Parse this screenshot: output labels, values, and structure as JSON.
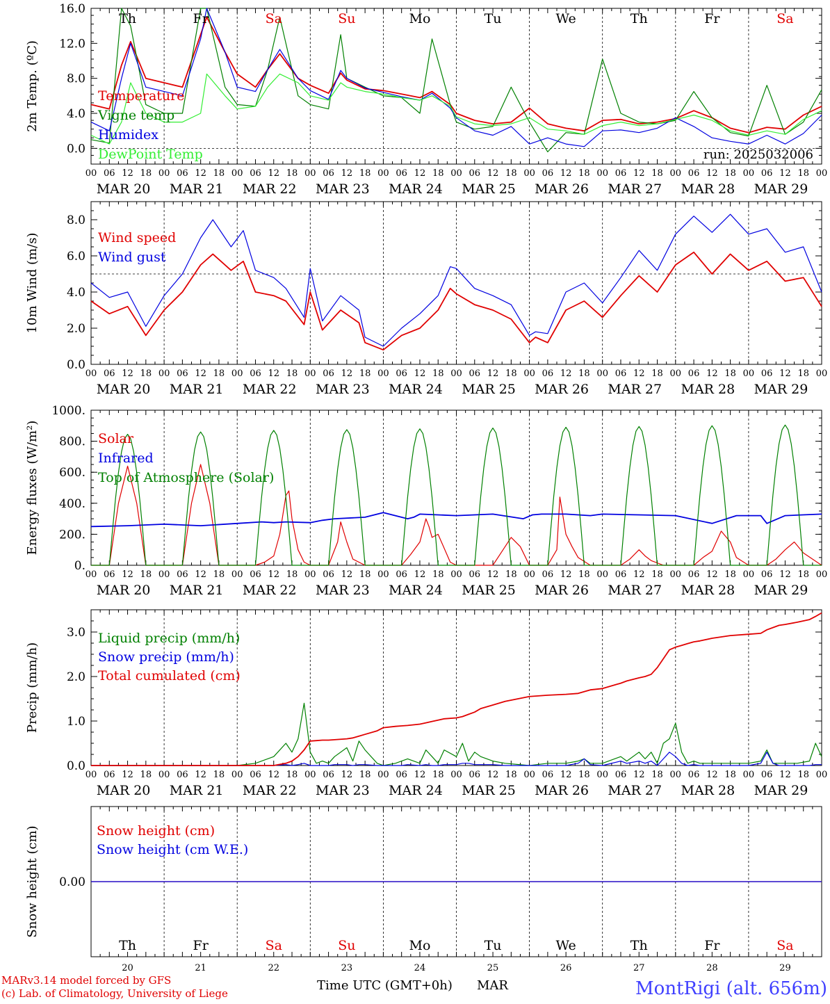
{
  "footer": {
    "model_line": "MARv3.14 model forced by GFS",
    "lab_line": "(c) Lab. of Climatology, University of Liege",
    "time_axis_label": "Time UTC (GMT+0h)",
    "month_label": "MAR",
    "station": "MontRigi (alt. 656m)"
  },
  "days": {
    "weekday_abbr": [
      "Th",
      "Fr",
      "Sa",
      "Su",
      "Mo",
      "Tu",
      "We",
      "Th",
      "Fr",
      "Sa"
    ],
    "weekday_colors": [
      "#000000",
      "#000000",
      "#e00000",
      "#e00000",
      "#000000",
      "#000000",
      "#000000",
      "#000000",
      "#000000",
      "#e00000"
    ],
    "date_labels": [
      "MAR 20",
      "MAR 21",
      "MAR 22",
      "MAR 23",
      "MAR 24",
      "MAR 25",
      "MAR 26",
      "MAR 27",
      "MAR 28",
      "MAR 29"
    ],
    "day_numbers": [
      "20",
      "21",
      "22",
      "23",
      "24",
      "25",
      "26",
      "27",
      "28",
      "29"
    ],
    "hour_ticks": [
      "00",
      "06",
      "12",
      "18"
    ],
    "final_hour": "00"
  },
  "chart_data": [
    {
      "type": "line",
      "id": "temperature",
      "ylabel": "2m Temp. (ºC)",
      "ylim": [
        -1.8,
        16.0
      ],
      "yticks": [
        0,
        4,
        8,
        12,
        16
      ],
      "ytick_labels": [
        "0.0",
        "4.0",
        "8.0",
        "12.0",
        "16.0"
      ],
      "dashed_reference": 0,
      "annotation": "run: 2025032006",
      "x_hours": [
        0,
        6,
        10,
        13,
        18,
        24,
        30,
        36,
        38,
        44,
        48,
        54,
        58,
        62,
        68,
        72,
        78,
        82,
        84,
        90,
        96,
        102,
        108,
        112,
        118,
        120,
        126,
        132,
        138,
        144,
        150,
        156,
        162,
        168,
        174,
        180,
        186,
        192,
        198,
        204,
        210,
        216,
        222,
        228,
        234,
        240
      ],
      "series": [
        {
          "name": "Temperature",
          "color": "#e00000",
          "values": [
            5.0,
            4.5,
            9.5,
            12.2,
            8.0,
            7.5,
            7.0,
            13.0,
            15.0,
            11.0,
            8.5,
            7.0,
            9.0,
            10.8,
            8.0,
            7.2,
            6.3,
            8.6,
            7.8,
            6.8,
            6.6,
            6.2,
            5.8,
            6.5,
            5.0,
            4.0,
            3.2,
            2.8,
            3.0,
            4.6,
            2.8,
            2.3,
            2.0,
            3.2,
            3.3,
            2.8,
            3.0,
            3.4,
            4.3,
            3.5,
            2.3,
            1.8,
            2.4,
            2.2,
            3.8,
            4.8
          ]
        },
        {
          "name": "Vigne temp",
          "color": "#008000",
          "values": [
            1.0,
            0.6,
            16.0,
            14.0,
            5.0,
            4.0,
            4.0,
            16.0,
            16.0,
            7.0,
            5.0,
            4.8,
            9.0,
            15.0,
            6.0,
            5.0,
            4.5,
            13.0,
            8.0,
            7.0,
            6.0,
            5.8,
            4.0,
            12.5,
            5.0,
            3.0,
            2.2,
            2.5,
            7.0,
            3.0,
            -0.4,
            1.8,
            1.6,
            10.2,
            4.0,
            3.0,
            2.8,
            3.2,
            6.5,
            3.5,
            1.8,
            1.4,
            7.2,
            1.6,
            3.0,
            6.7
          ]
        },
        {
          "name": "Humidex",
          "color": "#0000e0",
          "values": [
            3.0,
            2.0,
            8.0,
            12.0,
            7.0,
            6.5,
            6.0,
            12.5,
            16.0,
            11.0,
            7.0,
            6.5,
            9.0,
            11.3,
            8.0,
            6.6,
            5.6,
            8.9,
            8.0,
            6.9,
            6.4,
            5.9,
            5.5,
            6.3,
            4.6,
            3.5,
            2.0,
            1.5,
            2.5,
            0.5,
            1.2,
            0.5,
            0.2,
            2.0,
            2.1,
            1.8,
            2.3,
            3.5,
            2.5,
            1.2,
            0.8,
            0.5,
            1.5,
            0.5,
            1.7,
            3.8
          ]
        },
        {
          "name": "DewPoint Temp",
          "color": "#33ee33",
          "values": [
            1.5,
            0.5,
            3.0,
            7.5,
            4.0,
            3.0,
            3.0,
            4.0,
            8.5,
            6.0,
            4.5,
            4.8,
            7.0,
            8.5,
            7.5,
            6.0,
            5.5,
            7.5,
            7.0,
            6.5,
            6.2,
            5.8,
            5.5,
            6.0,
            4.8,
            3.6,
            2.8,
            2.6,
            2.8,
            3.5,
            2.2,
            2.0,
            1.6,
            2.6,
            3.0,
            2.6,
            2.8,
            3.3,
            3.8,
            3.2,
            2.0,
            1.5,
            2.0,
            1.6,
            3.3,
            4.3
          ]
        }
      ]
    },
    {
      "type": "line",
      "id": "wind",
      "ylabel": "10m Wind (m/s)",
      "ylim": [
        0,
        9.0
      ],
      "yticks": [
        0,
        2,
        4,
        6,
        8
      ],
      "ytick_labels": [
        "0.0",
        "2.0",
        "4.0",
        "6.0",
        "8.0"
      ],
      "dashed_reference": 5,
      "x_hours": [
        0,
        6,
        12,
        18,
        24,
        30,
        36,
        40,
        46,
        50,
        54,
        60,
        64,
        70,
        72,
        76,
        82,
        88,
        90,
        96,
        102,
        108,
        114,
        118,
        120,
        126,
        132,
        138,
        144,
        146,
        150,
        156,
        162,
        168,
        174,
        180,
        186,
        192,
        198,
        204,
        210,
        216,
        222,
        228,
        234,
        240
      ],
      "series": [
        {
          "name": "Wind speed",
          "color": "#e00000",
          "values": [
            3.5,
            2.8,
            3.2,
            1.6,
            3.0,
            4.0,
            5.5,
            6.1,
            5.2,
            5.7,
            4.0,
            3.8,
            3.5,
            2.2,
            4.0,
            1.9,
            3.0,
            2.3,
            1.2,
            0.8,
            1.6,
            2.0,
            3.0,
            4.2,
            3.9,
            3.3,
            3.0,
            2.5,
            1.2,
            1.5,
            1.2,
            3.0,
            3.5,
            2.6,
            3.8,
            4.9,
            4.0,
            5.5,
            6.2,
            5.0,
            6.1,
            5.2,
            5.7,
            4.6,
            4.8,
            3.2
          ]
        },
        {
          "name": "Wind gust",
          "color": "#0000e0",
          "values": [
            4.5,
            3.7,
            4.0,
            2.1,
            3.8,
            5.0,
            7.0,
            8.0,
            6.5,
            7.4,
            5.2,
            4.8,
            4.2,
            2.6,
            5.3,
            2.4,
            3.8,
            3.0,
            1.5,
            1.0,
            2.0,
            2.8,
            3.8,
            5.4,
            5.3,
            4.2,
            3.8,
            3.3,
            1.6,
            1.8,
            1.7,
            4.0,
            4.5,
            3.4,
            4.8,
            6.3,
            5.2,
            7.2,
            8.2,
            7.3,
            8.3,
            7.2,
            7.5,
            6.2,
            6.5,
            4.0
          ]
        }
      ]
    },
    {
      "type": "line",
      "id": "energy",
      "ylabel": "Energy fluxes (W/m²)",
      "ylim": [
        0,
        1000
      ],
      "yticks": [
        0,
        200,
        400,
        600,
        800,
        1000
      ],
      "ytick_labels": [
        "0.",
        "200.",
        "400.",
        "600.",
        "800.",
        "1000."
      ],
      "tick_labels_outer": [
        "1000."
      ],
      "toa_peaks": [
        845,
        860,
        870,
        875,
        880,
        885,
        890,
        895,
        900,
        905
      ],
      "solar_x_hours": [
        0,
        6,
        9,
        12,
        15,
        18,
        20,
        24,
        30,
        33,
        36,
        39,
        42,
        44,
        48,
        54,
        57,
        60,
        62,
        64,
        65,
        66,
        68,
        70,
        72,
        78,
        81,
        82,
        84,
        86,
        90,
        96,
        102,
        105,
        108,
        110,
        111,
        112,
        114,
        118,
        120,
        126,
        132,
        135,
        138,
        141,
        144,
        150,
        153,
        154,
        156,
        158,
        160,
        164,
        168,
        174,
        177,
        180,
        182,
        184,
        188,
        192,
        198,
        201,
        204,
        207,
        210,
        212,
        216,
        222,
        225,
        228,
        231,
        234,
        240
      ],
      "infrared_x_hours": [
        0,
        12,
        24,
        36,
        48,
        56,
        60,
        64,
        72,
        76,
        80,
        90,
        96,
        104,
        106,
        108,
        120,
        132,
        142,
        145,
        148,
        156,
        164,
        166,
        168,
        180,
        192,
        204,
        212,
        214,
        216,
        220,
        222,
        228,
        240
      ],
      "series": [
        {
          "name": "Solar",
          "color": "#e00000",
          "values": [
            0,
            0,
            400,
            640,
            400,
            0,
            0,
            0,
            0,
            400,
            650,
            400,
            0,
            0,
            0,
            0,
            20,
            60,
            200,
            450,
            480,
            300,
            100,
            20,
            0,
            0,
            150,
            280,
            150,
            40,
            0,
            0,
            0,
            70,
            150,
            300,
            250,
            180,
            200,
            20,
            0,
            0,
            0,
            90,
            180,
            120,
            0,
            0,
            100,
            440,
            200,
            120,
            50,
            0,
            0,
            0,
            40,
            100,
            60,
            30,
            0,
            0,
            0,
            50,
            90,
            220,
            150,
            50,
            0,
            0,
            40,
            100,
            150,
            80,
            0
          ]
        },
        {
          "name": "Infrared",
          "color": "#0000e0",
          "values": [
            250,
            255,
            265,
            255,
            270,
            280,
            275,
            280,
            275,
            290,
            300,
            310,
            340,
            300,
            310,
            330,
            320,
            330,
            300,
            325,
            330,
            330,
            320,
            325,
            330,
            325,
            320,
            270,
            320,
            320,
            320,
            320,
            270,
            320,
            330
          ]
        },
        {
          "name": "Top of Atmosphere (Solar)",
          "color": "#008000",
          "shape": "daily-half-sine 06-18h",
          "values": [
            845,
            860,
            870,
            875,
            880,
            885,
            890,
            895,
            900,
            905
          ]
        }
      ]
    },
    {
      "type": "line",
      "id": "precip",
      "ylabel": "Precip (mm/h)",
      "ylim": [
        0,
        3.5
      ],
      "yticks": [
        0,
        1,
        2,
        3
      ],
      "ytick_labels": [
        "0.0",
        "1.0",
        "2.0",
        "3.0"
      ],
      "x_hours": [
        0,
        12,
        24,
        36,
        48,
        54,
        60,
        64,
        66,
        68,
        70,
        72,
        74,
        76,
        78,
        80,
        84,
        86,
        88,
        90,
        94,
        96,
        100,
        102,
        104,
        108,
        110,
        112,
        114,
        116,
        120,
        122,
        124,
        126,
        128,
        132,
        136,
        144,
        150,
        156,
        160,
        162,
        164,
        168,
        174,
        176,
        180,
        182,
        184,
        186,
        188,
        190,
        192,
        194,
        196,
        198,
        200,
        204,
        210,
        216,
        220,
        222,
        224,
        226,
        228,
        232,
        236,
        238,
        240
      ],
      "series": [
        {
          "name": "Liquid precip (mm/h)",
          "color": "#008000",
          "values": [
            0,
            0,
            0,
            0,
            0,
            0.05,
            0.2,
            0.5,
            0.3,
            0.6,
            1.4,
            0.3,
            0.05,
            0.1,
            0.05,
            0.2,
            0.4,
            0.1,
            0.55,
            0.35,
            0.05,
            0,
            0.05,
            0.1,
            0.15,
            0.05,
            0.35,
            0.2,
            0.05,
            0.35,
            0.2,
            0.5,
            0.1,
            0.3,
            0.2,
            0.1,
            0.05,
            0,
            0.05,
            0.05,
            0.1,
            0.15,
            0.05,
            0.05,
            0.2,
            0.1,
            0.3,
            0.15,
            0.3,
            0.05,
            0.5,
            0.6,
            0.95,
            0.3,
            0.05,
            0.1,
            0.05,
            0.05,
            0.05,
            0.05,
            0.1,
            0.35,
            0.05,
            0.05,
            0.05,
            0.05,
            0.1,
            0.5,
            0.2
          ]
        },
        {
          "name": "Snow precip (mm/h)",
          "color": "#0000e0",
          "values": [
            0,
            0,
            0,
            0,
            0,
            0,
            0,
            0.02,
            0,
            0.02,
            0.05,
            0,
            0,
            0,
            0,
            0.02,
            0.02,
            0,
            0.02,
            0.02,
            0,
            0,
            0,
            0,
            0.02,
            0,
            0.02,
            0,
            0,
            0.02,
            0.02,
            0.05,
            0.05,
            0.02,
            0.02,
            0.02,
            0,
            0,
            0,
            0,
            0.05,
            0.15,
            0.02,
            0,
            0.1,
            0.05,
            0.1,
            0.05,
            0.1,
            0,
            0.15,
            0.3,
            0.2,
            0.05,
            0,
            0.02,
            0,
            0,
            0,
            0,
            0.05,
            0.3,
            0.05,
            0,
            0,
            0,
            0,
            0.02,
            0.02
          ]
        },
        {
          "name": "Total cumulated (cm)",
          "color": "#e00000",
          "values": [
            0,
            0,
            0,
            0,
            0,
            0,
            0,
            0.05,
            0.1,
            0.2,
            0.35,
            0.55,
            0.56,
            0.57,
            0.57,
            0.58,
            0.6,
            0.62,
            0.66,
            0.7,
            0.78,
            0.85,
            0.88,
            0.89,
            0.9,
            0.93,
            0.96,
            0.99,
            1.02,
            1.05,
            1.07,
            1.1,
            1.15,
            1.2,
            1.28,
            1.36,
            1.44,
            1.55,
            1.58,
            1.6,
            1.62,
            1.66,
            1.7,
            1.73,
            1.85,
            1.9,
            1.97,
            2.0,
            2.05,
            2.2,
            2.4,
            2.6,
            2.66,
            2.7,
            2.74,
            2.78,
            2.8,
            2.86,
            2.92,
            2.95,
            2.97,
            3.05,
            3.1,
            3.15,
            3.17,
            3.22,
            3.28,
            3.35,
            3.43
          ]
        }
      ]
    },
    {
      "type": "line",
      "id": "snow",
      "ylabel": "Snow height (cm)",
      "ylim": [
        -1,
        1
      ],
      "yticks": [
        0
      ],
      "ytick_labels": [
        "0.00"
      ],
      "x_hours": [
        0,
        240
      ],
      "series": [
        {
          "name": "Snow height (cm)",
          "color": "#e00000",
          "values": [
            0,
            0
          ]
        },
        {
          "name": "Snow height (cm W.E.)",
          "color": "#0000e0",
          "values": [
            0,
            0
          ]
        }
      ]
    }
  ]
}
